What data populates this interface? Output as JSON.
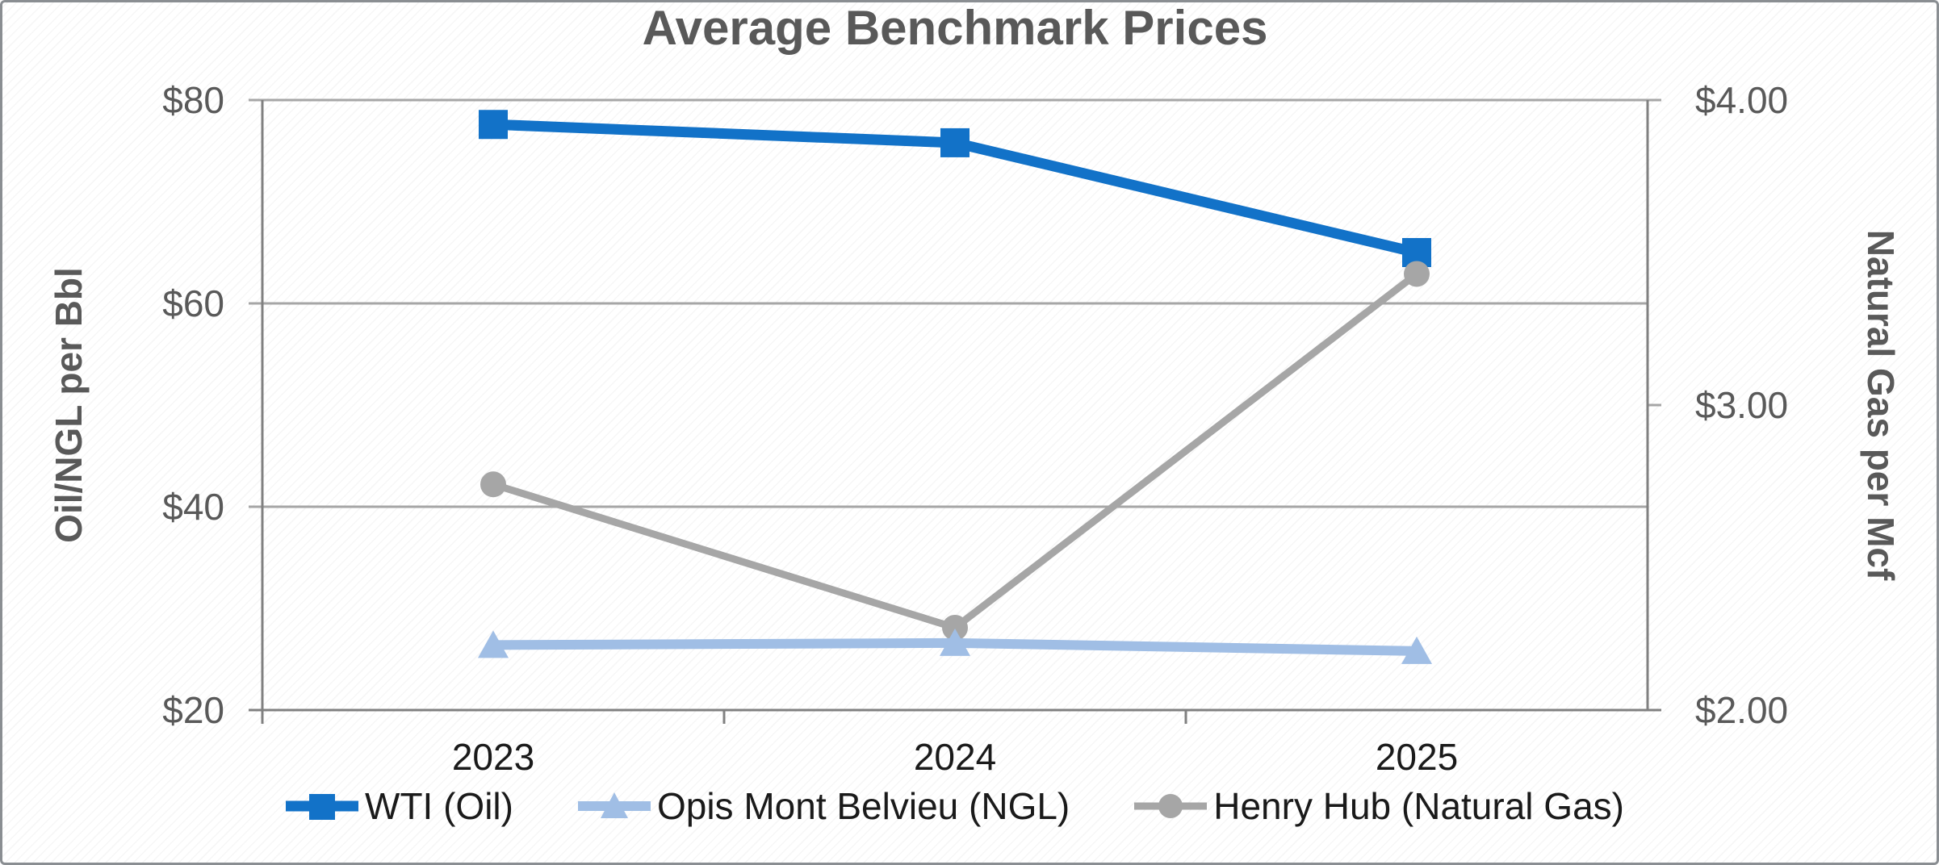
{
  "chart_data": {
    "type": "line",
    "title": "Average Benchmark Prices",
    "categories": [
      "2023",
      "2024",
      "2025"
    ],
    "series": [
      {
        "name": "WTI (Oil)",
        "axis": "left",
        "marker": "square",
        "color": "#1272C8",
        "values": [
          77.6,
          75.8,
          65.0
        ]
      },
      {
        "name": "Opis Mont Belvieu (NGL)",
        "axis": "left",
        "marker": "triangle",
        "color": "#A0BEE5",
        "values": [
          26.4,
          26.6,
          25.8
        ]
      },
      {
        "name": "Henry Hub (Natural Gas)",
        "axis": "right",
        "marker": "circle",
        "color": "#A6A6A6",
        "values": [
          2.74,
          2.27,
          3.43
        ]
      }
    ],
    "left_axis": {
      "title": "Oil/NGL per Bbl",
      "min": 20,
      "max": 80,
      "tick_values": [
        80,
        60,
        40,
        20
      ],
      "tick_labels": [
        "$80",
        "$60",
        "$40",
        "$20"
      ]
    },
    "right_axis": {
      "title": "Natural Gas per Mcf",
      "min": 2,
      "max": 4,
      "tick_values": [
        4,
        3,
        2
      ],
      "tick_labels": [
        "$4.00",
        "$3.00",
        "$2.00"
      ]
    },
    "grid": true,
    "legend_position": "bottom",
    "legend_order": [
      "WTI (Oil)",
      "Opis Mont Belvieu (NGL)",
      "Henry Hub (Natural Gas)"
    ]
  },
  "colors": {
    "grid_gray": "#A6A6A6",
    "axis_gray": "#808080",
    "title_gray": "#595959",
    "label_black": "#1a1a1a",
    "frame_border": "#8a8e92"
  }
}
